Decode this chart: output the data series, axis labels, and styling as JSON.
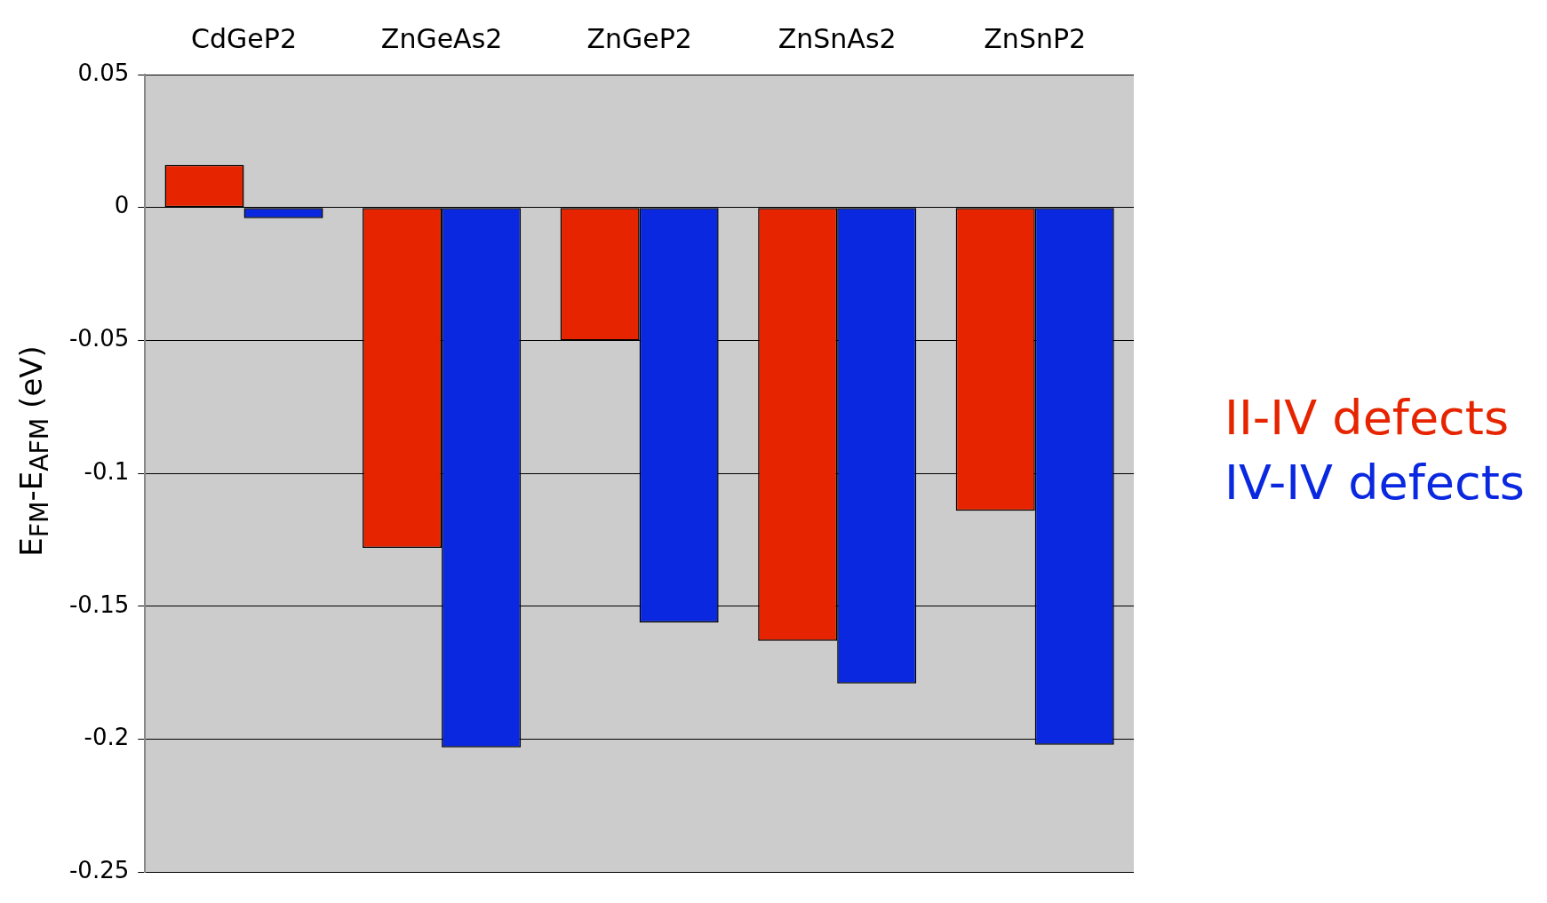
{
  "chart_data": {
    "type": "bar",
    "categories": [
      "CdGeP2",
      "ZnGeAs2",
      "ZnGeP2",
      "ZnSnAs2",
      "ZnSnP2"
    ],
    "series": [
      {
        "name": "II-IV defects",
        "color": "#e62500",
        "values": [
          0.016,
          -0.128,
          -0.05,
          -0.163,
          -0.114
        ]
      },
      {
        "name": "IV-IV defects",
        "color": "#0a28e0",
        "values": [
          -0.004,
          -0.203,
          -0.156,
          -0.179,
          -0.202
        ]
      }
    ],
    "ylabel": "E$_{FM}$-E$_{AFM}$ (eV)",
    "ylim": [
      -0.25,
      0.05
    ],
    "yticks": [
      0.05,
      0,
      -0.05,
      -0.1,
      -0.15,
      -0.2,
      -0.25
    ],
    "grid": "y",
    "legend": "right"
  }
}
